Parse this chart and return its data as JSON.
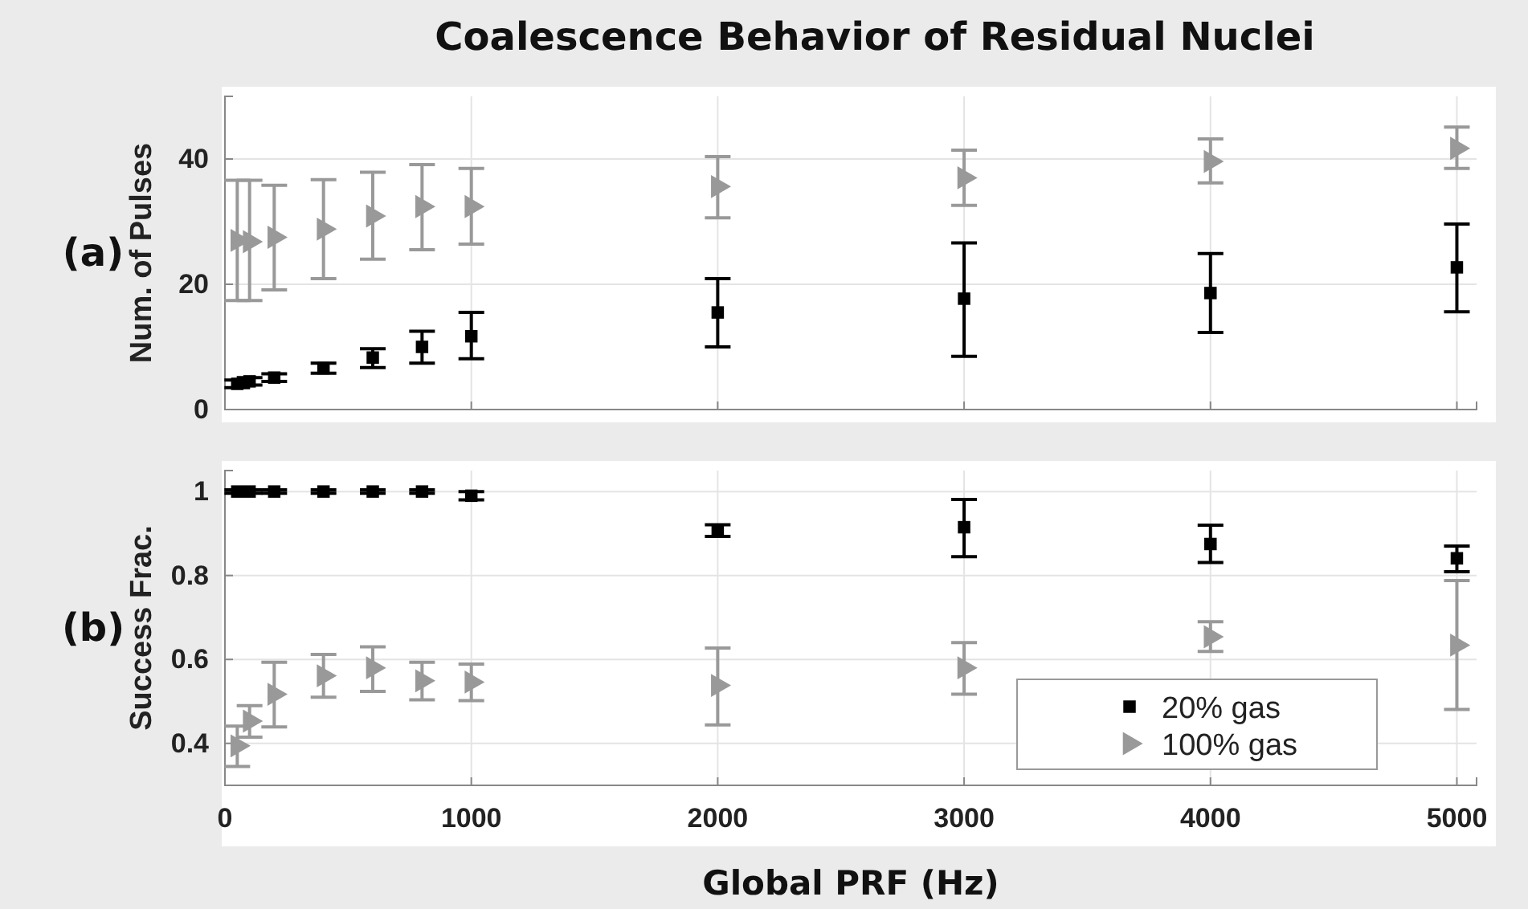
{
  "chart_data": [
    {
      "type": "scatter",
      "title": "Coalescence Behavior of Residual Nuclei",
      "ylabel": "Num. of Pulses",
      "annotations": [
        "(a)"
      ],
      "x": [
        50,
        100,
        200,
        400,
        600,
        800,
        1000,
        2000,
        3000,
        4000,
        5000
      ],
      "xlim": [
        0,
        5080
      ],
      "xticks": [
        0,
        1000,
        2000,
        3000,
        4000,
        5000
      ],
      "ylim": [
        0,
        50
      ],
      "yticks": [
        0,
        20,
        40
      ],
      "grid": true,
      "tick_labels": "y",
      "legend": false,
      "series": [
        {
          "color": "#000000",
          "marker": "square",
          "values": [
            4.1,
            4.5,
            5.1,
            6.6,
            8.3,
            10.0,
            11.7,
            15.5,
            17.7,
            18.6,
            22.7
          ],
          "errors": [
            [
              3.5,
              4.7
            ],
            [
              3.9,
              5.1
            ],
            [
              4.5,
              5.7
            ],
            [
              5.8,
              7.4
            ],
            [
              6.7,
              9.7
            ],
            [
              7.4,
              12.5
            ],
            [
              8.1,
              15.5
            ],
            [
              10.0,
              20.9
            ],
            [
              8.5,
              26.6
            ],
            [
              12.3,
              24.9
            ],
            [
              15.6,
              29.6
            ]
          ]
        },
        {
          "color": "#999999",
          "marker": "triangle",
          "values": [
            27.0,
            26.8,
            27.5,
            28.8,
            30.9,
            32.4,
            32.4,
            35.6,
            37.0,
            39.6,
            41.7
          ],
          "errors": [
            [
              17.4,
              36.6
            ],
            [
              17.4,
              36.6
            ],
            [
              19.1,
              35.8
            ],
            [
              20.9,
              36.7
            ],
            [
              24.0,
              37.9
            ],
            [
              25.5,
              39.1
            ],
            [
              26.4,
              38.5
            ],
            [
              30.6,
              40.4
            ],
            [
              32.6,
              41.4
            ],
            [
              36.2,
              43.2
            ],
            [
              38.5,
              45.1
            ]
          ]
        }
      ]
    },
    {
      "type": "scatter",
      "ylabel": "Success Frac.",
      "xlabel": "Global PRF (Hz)",
      "annotations": [
        "(b)"
      ],
      "x": [
        50,
        100,
        200,
        400,
        600,
        800,
        1000,
        2000,
        3000,
        4000,
        5000
      ],
      "xlim": [
        0,
        5080
      ],
      "xticks": [
        0,
        1000,
        2000,
        3000,
        4000,
        5000
      ],
      "ylim": [
        0.3,
        1.05
      ],
      "yticks": [
        0.4,
        0.6,
        0.8,
        1
      ],
      "grid": true,
      "legend": "bottom right",
      "series": [
        {
          "name": "20% gas",
          "color": "#000000",
          "marker": "square",
          "values": [
            1,
            1,
            1,
            1,
            1,
            1,
            0.99,
            0.907,
            0.915,
            0.875,
            0.841
          ],
          "errors": [
            0.004,
            0.004,
            0.004,
            0.004,
            0.004,
            0.004,
            0.01,
            0.014,
            [
              0.845,
              0.981
            ],
            [
              0.831,
              0.92
            ],
            [
              0.809,
              0.87
            ]
          ]
        },
        {
          "name": "100% gas",
          "color": "#999999",
          "marker": "triangle",
          "values": [
            0.394,
            0.453,
            0.517,
            0.561,
            0.58,
            0.549,
            0.546,
            0.538,
            0.58,
            0.654,
            0.634
          ],
          "errors": [
            [
              0.345,
              0.441
            ],
            [
              0.415,
              0.49
            ],
            [
              0.439,
              0.593
            ],
            [
              0.51,
              0.612
            ],
            [
              0.524,
              0.63
            ],
            [
              0.504,
              0.593
            ],
            [
              0.502,
              0.589
            ],
            [
              0.444,
              0.627
            ],
            [
              0.517,
              0.64
            ],
            [
              0.619,
              0.69
            ],
            [
              0.481,
              0.788
            ]
          ]
        }
      ]
    }
  ]
}
